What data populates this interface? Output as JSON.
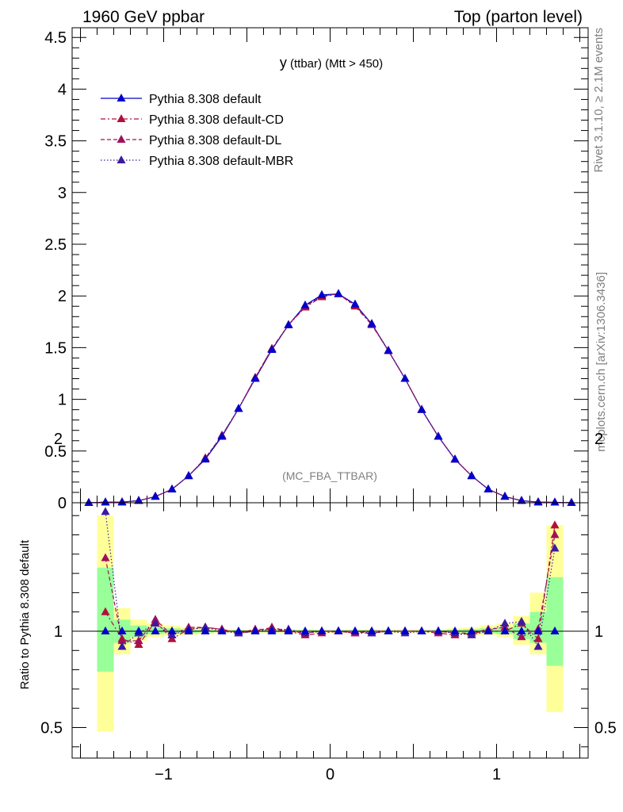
{
  "header": {
    "left": "1960 GeV ppbar",
    "right": "Top (parton level)"
  },
  "side": {
    "rivet": "Rivet 3.1.10, ≥ 2.1M events",
    "mcplots": "mcplots.cern.ch [arXiv:1306.3436]"
  },
  "main": {
    "plot_title_var": "y",
    "plot_title_rest": " (ttbar) (Mtt > 450)",
    "watermark": "(MC_FBA_TTBAR)"
  },
  "ratio": {
    "ylabel": "Ratio to Pythia 8.308 default"
  },
  "colors": {
    "default": "#0000cc",
    "cd": "#b0103c",
    "dl": "#a0105a",
    "mbr": "#3c1aa0",
    "band_yellow": "#ffff99",
    "band_green": "#99ff99"
  },
  "chart_data": [
    {
      "type": "line",
      "title": "y (ttbar) (Mtt > 450)",
      "xlim": [
        -1.55,
        1.55
      ],
      "ylim": [
        0,
        4.6
      ],
      "yticks": [
        "0",
        "0.5",
        "1",
        "1.5",
        "2",
        "2.5",
        "3",
        "3.5",
        "4",
        "4.5"
      ],
      "legend_position": "top-left",
      "x": [
        -1.45,
        -1.35,
        -1.25,
        -1.15,
        -1.05,
        -0.95,
        -0.85,
        -0.75,
        -0.65,
        -0.55,
        -0.45,
        -0.35,
        -0.25,
        -0.15,
        -0.05,
        0.05,
        0.15,
        0.25,
        0.35,
        0.45,
        0.55,
        0.65,
        0.75,
        0.85,
        0.95,
        1.05,
        1.15,
        1.25,
        1.35,
        1.45
      ],
      "series": [
        {
          "name": "Pythia 8.308 default",
          "style": "solid",
          "values": [
            0.0,
            0.005,
            0.006,
            0.02,
            0.06,
            0.13,
            0.26,
            0.42,
            0.64,
            0.91,
            1.2,
            1.48,
            1.72,
            1.91,
            2.01,
            2.02,
            1.92,
            1.73,
            1.47,
            1.2,
            0.9,
            0.64,
            0.42,
            0.26,
            0.13,
            0.06,
            0.02,
            0.006,
            0.004,
            0.0
          ]
        },
        {
          "name": "Pythia 8.308 default-CD",
          "style": "dashdot",
          "values": [
            0.0,
            0.005,
            0.006,
            0.02,
            0.06,
            0.13,
            0.26,
            0.43,
            0.65,
            0.91,
            1.21,
            1.49,
            1.72,
            1.89,
            1.99,
            2.02,
            1.9,
            1.72,
            1.47,
            1.2,
            0.9,
            0.64,
            0.42,
            0.26,
            0.13,
            0.06,
            0.02,
            0.006,
            0.004,
            0.0
          ]
        },
        {
          "name": "Pythia 8.308 default-DL",
          "style": "dashed",
          "values": [
            0.0,
            0.005,
            0.006,
            0.02,
            0.06,
            0.13,
            0.26,
            0.43,
            0.65,
            0.91,
            1.21,
            1.49,
            1.72,
            1.9,
            2.0,
            2.02,
            1.91,
            1.73,
            1.47,
            1.2,
            0.9,
            0.64,
            0.42,
            0.26,
            0.13,
            0.06,
            0.02,
            0.006,
            0.004,
            0.0
          ]
        },
        {
          "name": "Pythia 8.308 default-MBR",
          "style": "dotted",
          "values": [
            0.0,
            0.005,
            0.006,
            0.02,
            0.06,
            0.13,
            0.26,
            0.43,
            0.65,
            0.91,
            1.2,
            1.48,
            1.72,
            1.9,
            2.0,
            2.02,
            1.91,
            1.73,
            1.47,
            1.2,
            0.9,
            0.64,
            0.42,
            0.26,
            0.13,
            0.06,
            0.02,
            0.006,
            0.004,
            0.0
          ]
        }
      ]
    },
    {
      "type": "line",
      "ylabel": "Ratio to Pythia 8.308 default",
      "xlim": [
        -1.55,
        1.55
      ],
      "ylim": [
        0.35,
        2.3
      ],
      "xticks": [
        "−1",
        "0",
        "1"
      ],
      "yticks": [
        "0.5",
        "1",
        "2"
      ],
      "x": [
        -1.35,
        -1.25,
        -1.15,
        -1.05,
        -0.95,
        -0.85,
        -0.75,
        -0.65,
        -0.55,
        -0.45,
        -0.35,
        -0.25,
        -0.15,
        -0.05,
        0.05,
        0.15,
        0.25,
        0.35,
        0.45,
        0.55,
        0.65,
        0.75,
        0.85,
        0.95,
        1.05,
        1.15,
        1.25,
        1.35
      ],
      "uncertainty_bands": {
        "yellow": [
          [
            0.48,
            1.6
          ],
          [
            0.88,
            1.12
          ],
          [
            0.95,
            1.06
          ],
          [
            0.97,
            1.04
          ],
          [
            0.98,
            1.03
          ],
          [
            0.98,
            1.02
          ],
          [
            0.985,
            1.015
          ],
          [
            0.99,
            1.01
          ],
          [
            0.99,
            1.01
          ],
          [
            0.99,
            1.01
          ],
          [
            0.99,
            1.01
          ],
          [
            0.99,
            1.01
          ],
          [
            0.99,
            1.01
          ],
          [
            0.99,
            1.01
          ],
          [
            0.99,
            1.01
          ],
          [
            0.99,
            1.01
          ],
          [
            0.99,
            1.01
          ],
          [
            0.99,
            1.01
          ],
          [
            0.99,
            1.01
          ],
          [
            0.99,
            1.01
          ],
          [
            0.99,
            1.01
          ],
          [
            0.985,
            1.015
          ],
          [
            0.98,
            1.02
          ],
          [
            0.98,
            1.03
          ],
          [
            0.97,
            1.04
          ],
          [
            0.93,
            1.08
          ],
          [
            0.88,
            1.2
          ],
          [
            0.58,
            1.55
          ]
        ],
        "green": [
          [
            0.79,
            1.33
          ],
          [
            0.94,
            1.06
          ],
          [
            0.97,
            1.03
          ],
          [
            0.985,
            1.02
          ],
          [
            0.99,
            1.015
          ],
          [
            0.99,
            1.01
          ],
          [
            0.993,
            1.007
          ],
          [
            0.995,
            1.005
          ],
          [
            0.995,
            1.005
          ],
          [
            0.995,
            1.005
          ],
          [
            0.995,
            1.005
          ],
          [
            0.995,
            1.005
          ],
          [
            0.995,
            1.005
          ],
          [
            0.995,
            1.005
          ],
          [
            0.995,
            1.005
          ],
          [
            0.995,
            1.005
          ],
          [
            0.995,
            1.005
          ],
          [
            0.995,
            1.005
          ],
          [
            0.995,
            1.005
          ],
          [
            0.995,
            1.005
          ],
          [
            0.995,
            1.005
          ],
          [
            0.993,
            1.007
          ],
          [
            0.99,
            1.01
          ],
          [
            0.99,
            1.015
          ],
          [
            0.985,
            1.02
          ],
          [
            0.96,
            1.04
          ],
          [
            0.94,
            1.1
          ],
          [
            0.82,
            1.28
          ]
        ]
      },
      "series": [
        {
          "name": "Pythia 8.308 default-CD",
          "style": "dashdot",
          "values": [
            1.1,
            0.96,
            0.93,
            1.05,
            0.96,
            1.01,
            1.02,
            1.01,
            0.99,
            1.0,
            1.02,
            1.0,
            0.98,
            0.99,
            1.0,
            0.99,
            0.99,
            1.0,
            1.0,
            1.0,
            0.99,
            0.98,
            0.99,
            1.0,
            1.0,
            1.04,
            0.96,
            1.55
          ]
        },
        {
          "name": "Pythia 8.308 default-DL",
          "style": "dashed",
          "values": [
            1.38,
            0.95,
            0.95,
            1.06,
            0.98,
            1.02,
            1.02,
            1.01,
            0.99,
            1.01,
            1.01,
            1.0,
            0.99,
            1.0,
            1.0,
            0.99,
            1.0,
            1.0,
            1.0,
            1.0,
            1.0,
            0.99,
            0.99,
            1.01,
            1.02,
            0.97,
            1.01,
            1.5
          ]
        },
        {
          "name": "Pythia 8.308 default-MBR",
          "style": "dotted",
          "values": [
            1.62,
            0.92,
            0.99,
            1.04,
            0.98,
            1.01,
            1.02,
            1.0,
            0.99,
            1.0,
            1.01,
            1.01,
            0.99,
            1.0,
            1.0,
            1.0,
            0.99,
            1.0,
            0.99,
            1.0,
            1.0,
            0.99,
            0.98,
            1.0,
            1.04,
            1.05,
            0.92,
            1.43
          ]
        }
      ]
    }
  ]
}
